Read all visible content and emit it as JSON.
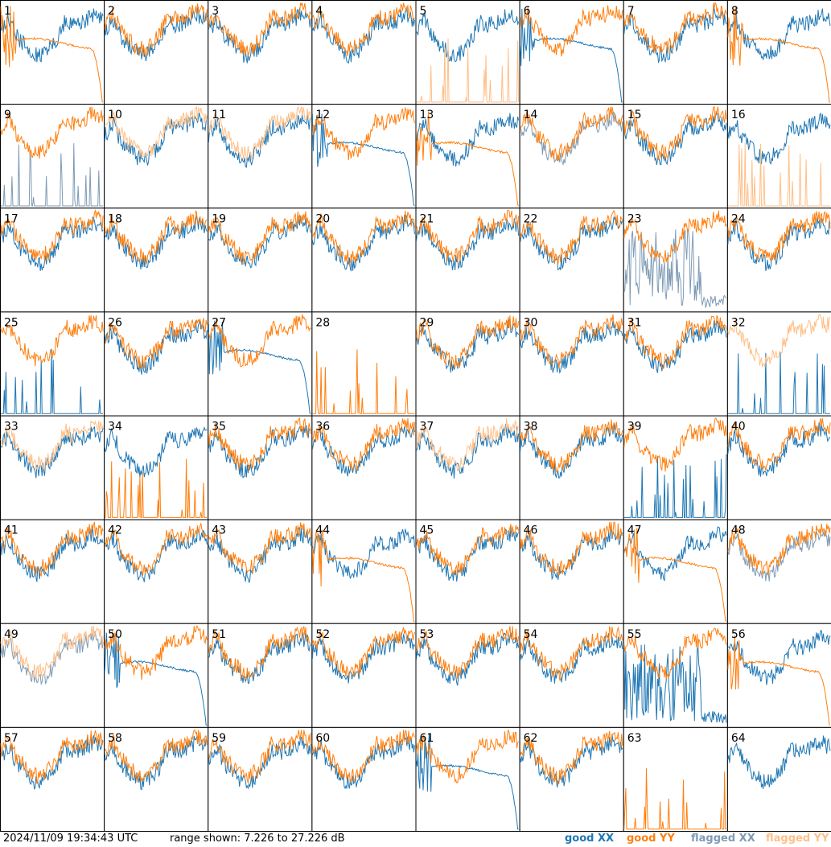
{
  "footer": {
    "timestamp": "2024/11/09 19:34:43 UTC",
    "range": "range shown: 7.226 to 27.226 dB"
  },
  "legend": [
    {
      "key": "good_xx",
      "label": "good XX",
      "color": "#1f77b4"
    },
    {
      "key": "good_yy",
      "label": "good YY",
      "color": "#ff7f0e"
    },
    {
      "key": "flagged_xx",
      "label": "flagged XX",
      "color": "#7f9bb5"
    },
    {
      "key": "flagged_yy",
      "label": "flagged YY",
      "color": "#ffbf87"
    }
  ],
  "chart_data": {
    "type": "line",
    "panel_grid": {
      "rows": 8,
      "cols": 8
    },
    "y_range_db": [
      7.226,
      27.226
    ],
    "panels": [
      {
        "n": "1",
        "xx": "normal",
        "yy": "rolloff",
        "xx_flag": false,
        "yy_flag": false
      },
      {
        "n": "2",
        "xx": "normal",
        "yy": "normal",
        "xx_flag": false,
        "yy_flag": false
      },
      {
        "n": "3",
        "xx": "normal",
        "yy": "normal",
        "xx_flag": false,
        "yy_flag": false
      },
      {
        "n": "4",
        "xx": "normal",
        "yy": "normal",
        "xx_flag": false,
        "yy_flag": false
      },
      {
        "n": "5",
        "xx": "normal",
        "yy": "spikes",
        "xx_flag": false,
        "yy_flag": true
      },
      {
        "n": "6",
        "xx": "rolloff",
        "yy": "normal",
        "xx_flag": false,
        "yy_flag": false
      },
      {
        "n": "7",
        "xx": "normal",
        "yy": "normal",
        "xx_flag": false,
        "yy_flag": false
      },
      {
        "n": "8",
        "xx": "normal",
        "yy": "rolloff",
        "xx_flag": false,
        "yy_flag": false
      },
      {
        "n": "9",
        "xx": "spikes",
        "yy": "normal",
        "xx_flag": true,
        "yy_flag": false
      },
      {
        "n": "10",
        "xx": "normal",
        "yy": "normal",
        "xx_flag": false,
        "yy_flag": true
      },
      {
        "n": "11",
        "xx": "normal",
        "yy": "normal",
        "xx_flag": false,
        "yy_flag": true
      },
      {
        "n": "12",
        "xx": "rolloff",
        "yy": "normal",
        "xx_flag": false,
        "yy_flag": false
      },
      {
        "n": "13",
        "xx": "normal",
        "yy": "rolloff",
        "xx_flag": false,
        "yy_flag": false
      },
      {
        "n": "14",
        "xx": "normal",
        "yy": "normal",
        "xx_flag": true,
        "yy_flag": false
      },
      {
        "n": "15",
        "xx": "normal",
        "yy": "normal",
        "xx_flag": false,
        "yy_flag": false
      },
      {
        "n": "16",
        "xx": "normal",
        "yy": "spikes",
        "xx_flag": false,
        "yy_flag": true
      },
      {
        "n": "17",
        "xx": "normal",
        "yy": "normal",
        "xx_flag": false,
        "yy_flag": false
      },
      {
        "n": "18",
        "xx": "normal",
        "yy": "normal",
        "xx_flag": false,
        "yy_flag": false
      },
      {
        "n": "19",
        "xx": "normal",
        "yy": "normal",
        "xx_flag": false,
        "yy_flag": false
      },
      {
        "n": "20",
        "xx": "normal",
        "yy": "normal",
        "xx_flag": false,
        "yy_flag": false
      },
      {
        "n": "21",
        "xx": "normal",
        "yy": "normal",
        "xx_flag": false,
        "yy_flag": false
      },
      {
        "n": "22",
        "xx": "normal",
        "yy": "normal",
        "xx_flag": false,
        "yy_flag": false
      },
      {
        "n": "23",
        "xx": "noisy",
        "yy": "normal",
        "xx_flag": true,
        "yy_flag": false
      },
      {
        "n": "24",
        "xx": "normal",
        "yy": "normal",
        "xx_flag": false,
        "yy_flag": false
      },
      {
        "n": "25",
        "xx": "spikes",
        "yy": "normal",
        "xx_flag": false,
        "yy_flag": false
      },
      {
        "n": "26",
        "xx": "normal",
        "yy": "normal",
        "xx_flag": false,
        "yy_flag": false
      },
      {
        "n": "27",
        "xx": "rolloff",
        "yy": "normal",
        "xx_flag": false,
        "yy_flag": false
      },
      {
        "n": "28",
        "xx": "none",
        "yy": "spikes",
        "xx_flag": false,
        "yy_flag": false
      },
      {
        "n": "29",
        "xx": "normal",
        "yy": "normal",
        "xx_flag": false,
        "yy_flag": false
      },
      {
        "n": "30",
        "xx": "normal",
        "yy": "normal",
        "xx_flag": false,
        "yy_flag": false
      },
      {
        "n": "31",
        "xx": "normal",
        "yy": "normal",
        "xx_flag": false,
        "yy_flag": false
      },
      {
        "n": "32",
        "xx": "spikes",
        "yy": "normal",
        "xx_flag": false,
        "yy_flag": true
      },
      {
        "n": "33",
        "xx": "normal",
        "yy": "normal",
        "xx_flag": false,
        "yy_flag": true
      },
      {
        "n": "34",
        "xx": "normal",
        "yy": "spikes",
        "xx_flag": false,
        "yy_flag": false
      },
      {
        "n": "35",
        "xx": "normal",
        "yy": "normal",
        "xx_flag": false,
        "yy_flag": false
      },
      {
        "n": "36",
        "xx": "normal",
        "yy": "normal",
        "xx_flag": false,
        "yy_flag": false
      },
      {
        "n": "37",
        "xx": "normal",
        "yy": "normal",
        "xx_flag": false,
        "yy_flag": true
      },
      {
        "n": "38",
        "xx": "normal",
        "yy": "normal",
        "xx_flag": false,
        "yy_flag": false
      },
      {
        "n": "39",
        "xx": "spikes",
        "yy": "normal",
        "xx_flag": false,
        "yy_flag": false
      },
      {
        "n": "40",
        "xx": "normal",
        "yy": "normal",
        "xx_flag": false,
        "yy_flag": false
      },
      {
        "n": "41",
        "xx": "normal",
        "yy": "normal",
        "xx_flag": false,
        "yy_flag": false
      },
      {
        "n": "42",
        "xx": "normal",
        "yy": "normal",
        "xx_flag": false,
        "yy_flag": false
      },
      {
        "n": "43",
        "xx": "normal",
        "yy": "normal",
        "xx_flag": false,
        "yy_flag": false
      },
      {
        "n": "44",
        "xx": "normal",
        "yy": "rolloff",
        "xx_flag": false,
        "yy_flag": false
      },
      {
        "n": "45",
        "xx": "normal",
        "yy": "normal",
        "xx_flag": false,
        "yy_flag": false
      },
      {
        "n": "46",
        "xx": "normal",
        "yy": "normal",
        "xx_flag": false,
        "yy_flag": false
      },
      {
        "n": "47",
        "xx": "normal",
        "yy": "rolloff",
        "xx_flag": false,
        "yy_flag": false
      },
      {
        "n": "48",
        "xx": "normal",
        "yy": "normal",
        "xx_flag": true,
        "yy_flag": false
      },
      {
        "n": "49",
        "xx": "normal",
        "yy": "normal",
        "xx_flag": true,
        "yy_flag": true
      },
      {
        "n": "50",
        "xx": "rolloff",
        "yy": "normal",
        "xx_flag": false,
        "yy_flag": false
      },
      {
        "n": "51",
        "xx": "normal",
        "yy": "normal",
        "xx_flag": false,
        "yy_flag": false
      },
      {
        "n": "52",
        "xx": "normal",
        "yy": "normal",
        "xx_flag": false,
        "yy_flag": false
      },
      {
        "n": "53",
        "xx": "normal",
        "yy": "normal",
        "xx_flag": false,
        "yy_flag": false
      },
      {
        "n": "54",
        "xx": "normal",
        "yy": "normal",
        "xx_flag": false,
        "yy_flag": false
      },
      {
        "n": "55",
        "xx": "noisy",
        "yy": "normal",
        "xx_flag": false,
        "yy_flag": false
      },
      {
        "n": "56",
        "xx": "normal",
        "yy": "rolloff",
        "xx_flag": false,
        "yy_flag": false
      },
      {
        "n": "57",
        "xx": "normal",
        "yy": "normal",
        "xx_flag": false,
        "yy_flag": false
      },
      {
        "n": "58",
        "xx": "normal",
        "yy": "normal",
        "xx_flag": false,
        "yy_flag": false
      },
      {
        "n": "59",
        "xx": "normal",
        "yy": "normal",
        "xx_flag": false,
        "yy_flag": false
      },
      {
        "n": "60",
        "xx": "normal",
        "yy": "normal",
        "xx_flag": false,
        "yy_flag": false
      },
      {
        "n": "61",
        "xx": "rolloff",
        "yy": "normal",
        "xx_flag": false,
        "yy_flag": false
      },
      {
        "n": "62",
        "xx": "normal",
        "yy": "normal",
        "xx_flag": false,
        "yy_flag": false
      },
      {
        "n": "63",
        "xx": "none",
        "yy": "spikes",
        "xx_flag": false,
        "yy_flag": false
      },
      {
        "n": "64",
        "xx": "normal",
        "yy": "none",
        "xx_flag": false,
        "yy_flag": false
      }
    ]
  }
}
